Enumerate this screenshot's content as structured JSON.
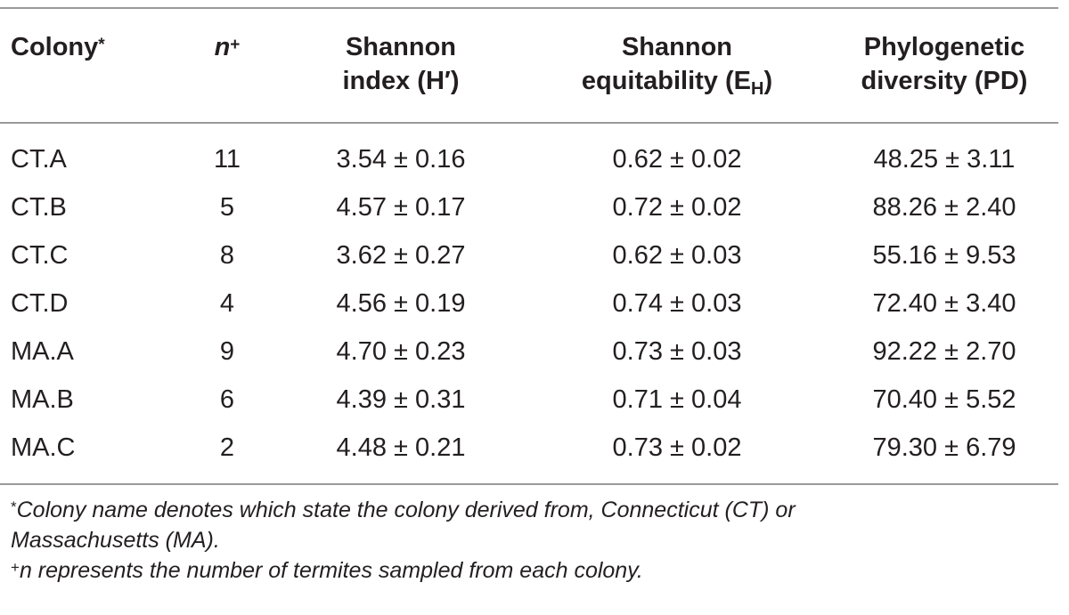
{
  "table": {
    "headers": {
      "colony": "Colony",
      "colony_mark": "*",
      "n": "n",
      "n_mark": "+",
      "shannon_line1": "Shannon",
      "shannon_line2": "index (H′)",
      "equit_line1": "Shannon",
      "equit_line2_pre": "equitability (E",
      "equit_sub": "H",
      "equit_line2_post": ")",
      "pd_line1": "Phylogenetic",
      "pd_line2": "diversity (PD)"
    },
    "rows": [
      {
        "colony": "CT.A",
        "n": "11",
        "shannon": "3.54 ± 0.16",
        "equitability": "0.62 ± 0.02",
        "pd": "48.25 ± 3.11"
      },
      {
        "colony": "CT.B",
        "n": "5",
        "shannon": "4.57 ± 0.17",
        "equitability": "0.72 ± 0.02",
        "pd": "88.26 ± 2.40"
      },
      {
        "colony": "CT.C",
        "n": "8",
        "shannon": "3.62 ± 0.27",
        "equitability": "0.62 ± 0.03",
        "pd": "55.16 ± 9.53"
      },
      {
        "colony": "CT.D",
        "n": "4",
        "shannon": "4.56 ± 0.19",
        "equitability": "0.74 ± 0.03",
        "pd": "72.40 ± 3.40"
      },
      {
        "colony": "MA.A",
        "n": "9",
        "shannon": "4.70 ± 0.23",
        "equitability": "0.73 ± 0.03",
        "pd": "92.22 ± 2.70"
      },
      {
        "colony": "MA.B",
        "n": "6",
        "shannon": "4.39 ± 0.31",
        "equitability": "0.71 ± 0.04",
        "pd": "70.40 ± 5.52"
      },
      {
        "colony": "MA.C",
        "n": "2",
        "shannon": "4.48 ± 0.21",
        "equitability": "0.73 ± 0.02",
        "pd": "79.30 ± 6.79"
      }
    ]
  },
  "footnotes": {
    "first_mark": "*",
    "first_text_line1": "Colony name denotes which state the colony derived from, Connecticut (CT) or",
    "first_text_line2": "Massachusetts (MA).",
    "second_mark": "+",
    "second_text": "n represents the number of termites sampled from each colony."
  }
}
